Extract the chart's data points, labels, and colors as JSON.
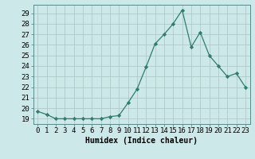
{
  "x": [
    0,
    1,
    2,
    3,
    4,
    5,
    6,
    7,
    8,
    9,
    10,
    11,
    12,
    13,
    14,
    15,
    16,
    17,
    18,
    19,
    20,
    21,
    22,
    23
  ],
  "y": [
    19.7,
    19.4,
    19.0,
    19.0,
    19.0,
    19.0,
    19.0,
    19.0,
    19.2,
    19.3,
    20.5,
    21.8,
    23.9,
    26.1,
    27.0,
    28.0,
    29.3,
    25.8,
    27.2,
    25.0,
    24.0,
    23.0,
    23.3,
    22.0
  ],
  "line_color": "#2e7d6e",
  "marker": "D",
  "marker_size": 2.2,
  "bg_color": "#cce8e8",
  "grid_color": "#b0c8c8",
  "xlabel": "Humidex (Indice chaleur)",
  "xlim": [
    -0.5,
    23.5
  ],
  "ylim": [
    18.5,
    29.8
  ],
  "yticks": [
    19,
    20,
    21,
    22,
    23,
    24,
    25,
    26,
    27,
    28,
    29
  ],
  "xtick_labels": [
    "0",
    "1",
    "2",
    "3",
    "4",
    "5",
    "6",
    "7",
    "8",
    "9",
    "10",
    "11",
    "12",
    "13",
    "14",
    "15",
    "16",
    "17",
    "18",
    "19",
    "20",
    "21",
    "22",
    "23"
  ],
  "xlabel_fontsize": 7,
  "tick_fontsize": 6.5,
  "linewidth": 0.9,
  "spine_color": "#5a8a8a"
}
